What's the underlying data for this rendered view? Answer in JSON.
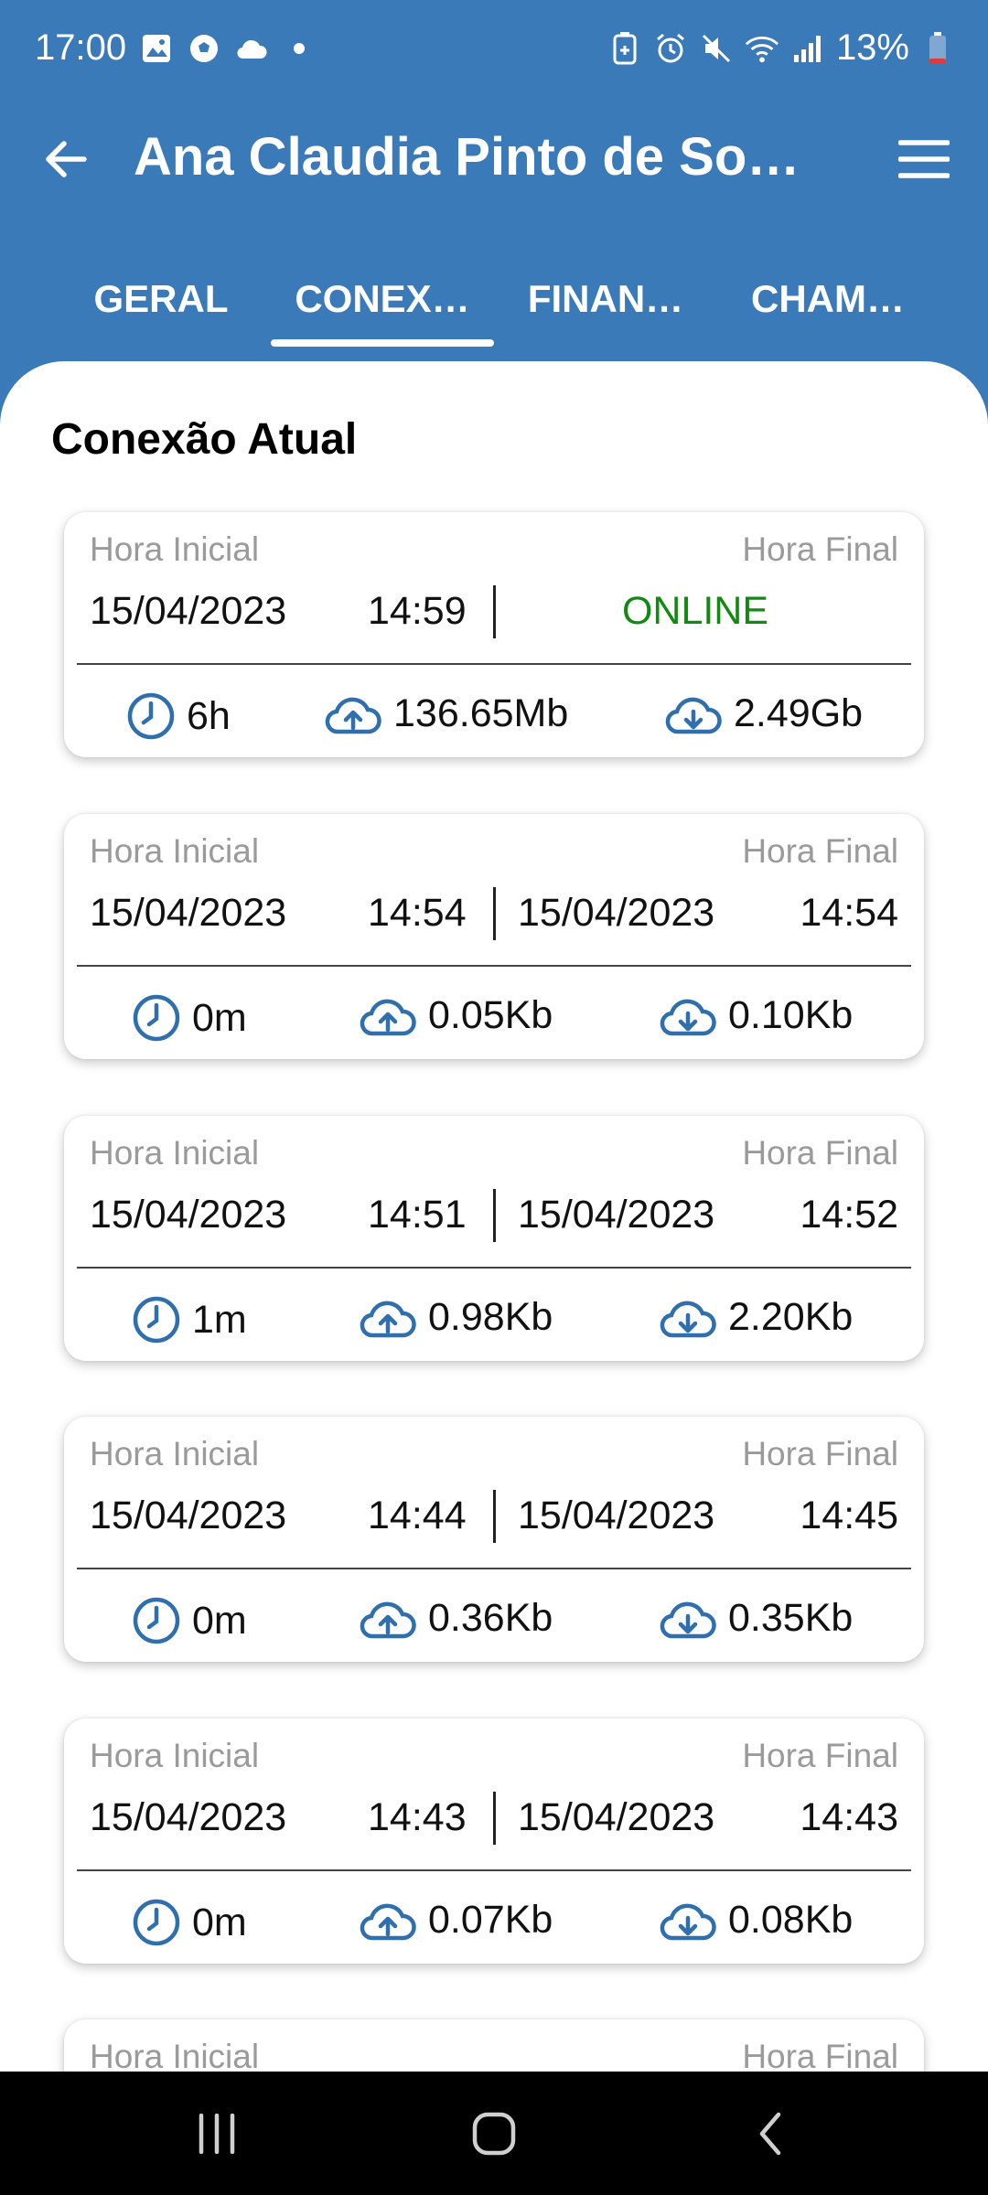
{
  "status_bar": {
    "time": "17:00",
    "battery": "13%",
    "left_icons": [
      "gallery-icon",
      "soccer-ball-icon",
      "cloud-icon",
      "dot-icon"
    ],
    "right_icons": [
      "battery-saver-icon",
      "alarm-icon",
      "mute-icon",
      "wifi-icon",
      "signal-icon",
      "battery-icon"
    ]
  },
  "app_bar": {
    "title": "Ana Claudia Pinto de So…",
    "back_icon": "arrow-back-icon",
    "menu_icon": "hamburger-menu-icon"
  },
  "tabs": [
    {
      "label": "GERAL",
      "selected": false
    },
    {
      "label": "CONEX…",
      "selected": true
    },
    {
      "label": "FINAN…",
      "selected": false
    },
    {
      "label": "CHAM…",
      "selected": false
    }
  ],
  "section_title": "Conexão Atual",
  "labels": {
    "start": "Hora Inicial",
    "end": "Hora Final"
  },
  "connections": [
    {
      "start_date": "15/04/2023",
      "start_time": "14:59",
      "status": "ONLINE",
      "duration": "6h",
      "upload": "136.65Mb",
      "download": "2.49Gb"
    },
    {
      "start_date": "15/04/2023",
      "start_time": "14:54",
      "end_date": "15/04/2023",
      "end_time": "14:54",
      "duration": "0m",
      "upload": "0.05Kb",
      "download": "0.10Kb"
    },
    {
      "start_date": "15/04/2023",
      "start_time": "14:51",
      "end_date": "15/04/2023",
      "end_time": "14:52",
      "duration": "1m",
      "upload": "0.98Kb",
      "download": "2.20Kb"
    },
    {
      "start_date": "15/04/2023",
      "start_time": "14:44",
      "end_date": "15/04/2023",
      "end_time": "14:45",
      "duration": "0m",
      "upload": "0.36Kb",
      "download": "0.35Kb"
    },
    {
      "start_date": "15/04/2023",
      "start_time": "14:43",
      "end_date": "15/04/2023",
      "end_time": "14:43",
      "duration": "0m",
      "upload": "0.07Kb",
      "download": "0.08Kb"
    }
  ],
  "colors": {
    "primary": "#3a7ab9",
    "online": "#128a12",
    "icon": "#2f6fad"
  },
  "nav_bar": {
    "buttons": [
      "recent-apps-icon",
      "home-icon",
      "back-icon"
    ]
  }
}
